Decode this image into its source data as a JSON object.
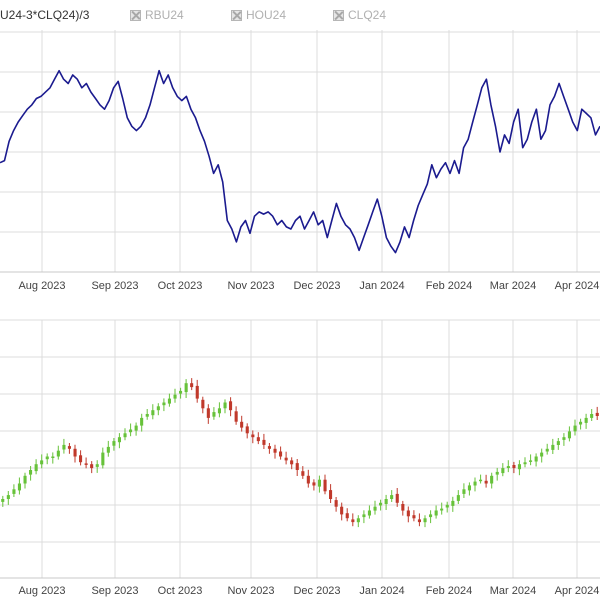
{
  "legend": {
    "series_label": "U24-3*CLQ24)/3",
    "items": [
      {
        "label": "RBU24",
        "enabled": false
      },
      {
        "label": "HOU24",
        "enabled": false
      },
      {
        "label": "CLQ24",
        "enabled": false
      }
    ]
  },
  "colors": {
    "line": "#1b1b8f",
    "up": "#67c23a",
    "down": "#c0392b",
    "grid": "#dcdcdc",
    "axis_text": "#444444"
  },
  "chart_data": [
    {
      "type": "line",
      "title": "",
      "xlabel": "",
      "ylabel": "",
      "x_tick_labels": [
        "Aug 2023",
        "Sep 2023",
        "Oct 2023",
        "Nov 2023",
        "Dec 2023",
        "Jan 2024",
        "Feb 2024",
        "Mar 2024",
        "Apr 2024"
      ],
      "ylim": [
        0,
        100
      ],
      "grid": true,
      "series": [
        {
          "values": [
            45,
            46,
            55,
            60,
            64,
            67,
            70,
            72,
            75,
            76,
            78,
            80,
            84,
            88,
            84,
            82,
            86,
            84,
            80,
            82,
            78,
            75,
            72,
            70,
            74,
            80,
            83,
            75,
            66,
            62,
            60,
            62,
            66,
            72,
            80,
            88,
            82,
            86,
            80,
            76,
            74,
            76,
            70,
            66,
            60,
            55,
            48,
            40,
            44,
            36,
            18,
            14,
            8,
            15,
            18,
            12,
            20,
            22,
            21,
            22,
            20,
            16,
            18,
            15,
            14,
            18,
            20,
            14,
            18,
            22,
            16,
            18,
            10,
            18,
            26,
            20,
            16,
            14,
            10,
            4,
            10,
            16,
            22,
            28,
            20,
            10,
            6,
            3,
            8,
            15,
            10,
            18,
            25,
            30,
            35,
            44,
            38,
            42,
            45,
            40,
            46,
            40,
            52,
            56,
            64,
            72,
            80,
            84,
            72,
            62,
            50,
            58,
            54,
            64,
            70,
            52,
            56,
            64,
            70,
            56,
            60,
            72,
            76,
            82,
            76,
            70,
            64,
            60,
            70,
            68,
            66,
            58,
            62
          ]
        }
      ]
    },
    {
      "type": "candlestick",
      "title": "",
      "xlabel": "",
      "ylabel": "",
      "x_tick_labels": [
        "Aug 2023",
        "Sep 2023",
        "Oct 2023",
        "Nov 2023",
        "Dec 2023",
        "Jan 2024",
        "Feb 2024",
        "Mar 2024",
        "Apr 2024"
      ],
      "ylim": [
        0,
        100
      ],
      "grid": true,
      "series": [
        {
          "close": [
            28,
            30,
            33,
            36,
            40,
            43,
            46,
            48,
            50,
            50,
            53,
            56,
            54,
            50,
            47,
            46,
            44,
            46,
            52,
            55,
            58,
            60,
            62,
            64,
            66,
            70,
            72,
            74,
            76,
            78,
            80,
            82,
            84,
            88,
            86,
            80,
            75,
            70,
            73,
            75,
            78,
            74,
            68,
            65,
            62,
            60,
            58,
            56,
            54,
            52,
            50,
            48,
            46,
            43,
            40,
            36,
            35,
            38,
            32,
            28,
            24,
            20,
            18,
            16,
            18,
            20,
            22,
            24,
            26,
            28,
            30,
            26,
            22,
            19,
            18,
            16,
            18,
            20,
            22,
            23,
            25,
            27,
            30,
            33,
            35,
            37,
            38,
            36,
            40,
            42,
            44,
            45,
            44,
            46,
            47,
            48,
            50,
            52,
            54,
            56,
            58,
            60,
            63,
            66,
            68,
            70,
            72,
            71
          ]
        }
      ]
    }
  ]
}
